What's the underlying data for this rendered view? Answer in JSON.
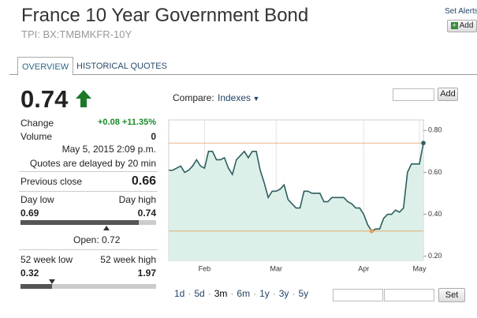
{
  "header": {
    "title": "France 10 Year Government Bond",
    "ticker": "TPI: BX:TMBMKFR-10Y",
    "set_alerts": "Set Alerts",
    "add": "Add"
  },
  "tabs": [
    "OVERVIEW",
    "HISTORICAL QUOTES"
  ],
  "quote": {
    "price": "0.74",
    "change_label": "Change",
    "change": "+0.08 +11.35%",
    "volume_label": "Volume",
    "volume": "0",
    "timestamp": "May 5, 2015 2:09 p.m.",
    "delay": "Quotes are delayed by 20 min",
    "prev_close_label": "Previous close",
    "prev_close": "0.66",
    "day_low_label": "Day low",
    "day_high_label": "Day high",
    "day_low": "0.69",
    "day_high": "0.74",
    "open": "Open: 0.72",
    "week_low_label": "52 week low",
    "week_high_label": "52 week high",
    "week_low": "0.32",
    "week_high": "1.97"
  },
  "compare": {
    "label": "Compare:",
    "dropdown": "Indexes",
    "add": "Add"
  },
  "ranges": [
    "1d",
    "5d",
    "3m",
    "6m",
    "1y",
    "3y",
    "5y"
  ],
  "range_separator": "·",
  "set": "Set",
  "chart_data": {
    "type": "line",
    "categories": [
      null,
      null,
      null,
      null,
      null,
      null,
      null,
      null,
      null,
      "Feb",
      null,
      null,
      null,
      null,
      null,
      null,
      null,
      null,
      null,
      null,
      null,
      null,
      null,
      null,
      null,
      null,
      null,
      "Mar",
      null,
      null,
      null,
      null,
      null,
      null,
      null,
      null,
      null,
      null,
      null,
      null,
      null,
      null,
      null,
      null,
      null,
      null,
      null,
      null,
      null,
      "Apr",
      null,
      null,
      null,
      null,
      null,
      null,
      null,
      null,
      null,
      null,
      null,
      null,
      null,
      "May",
      null
    ],
    "series": [
      {
        "color": "#2d5f5f",
        "values": [
          0.61,
          0.61,
          0.62,
          0.63,
          0.6,
          0.61,
          0.63,
          0.66,
          0.63,
          0.62,
          0.7,
          0.7,
          0.66,
          0.66,
          0.67,
          0.62,
          0.59,
          0.66,
          0.68,
          0.7,
          0.67,
          0.7,
          0.7,
          0.61,
          0.55,
          0.48,
          0.51,
          0.51,
          0.52,
          0.54,
          0.47,
          0.45,
          0.43,
          0.43,
          0.51,
          0.51,
          0.5,
          0.5,
          0.5,
          0.46,
          0.46,
          0.48,
          0.48,
          0.48,
          0.48,
          0.46,
          0.45,
          0.43,
          0.43,
          0.4,
          0.35,
          0.32,
          0.33,
          0.33,
          0.38,
          0.4,
          0.4,
          0.42,
          0.41,
          0.43,
          0.6,
          0.64,
          0.64,
          0.64,
          0.74
        ]
      }
    ],
    "ylim": [
      0.18,
      0.85
    ],
    "yticks": [
      {
        "value": 0.2,
        "label": "0.20"
      },
      {
        "value": 0.4,
        "label": "0.40"
      },
      {
        "value": 0.6,
        "label": "0.60"
      },
      {
        "value": 0.8,
        "label": "0.80"
      }
    ],
    "area_color": "#dcefe9",
    "reference_color": "#e0a060"
  }
}
